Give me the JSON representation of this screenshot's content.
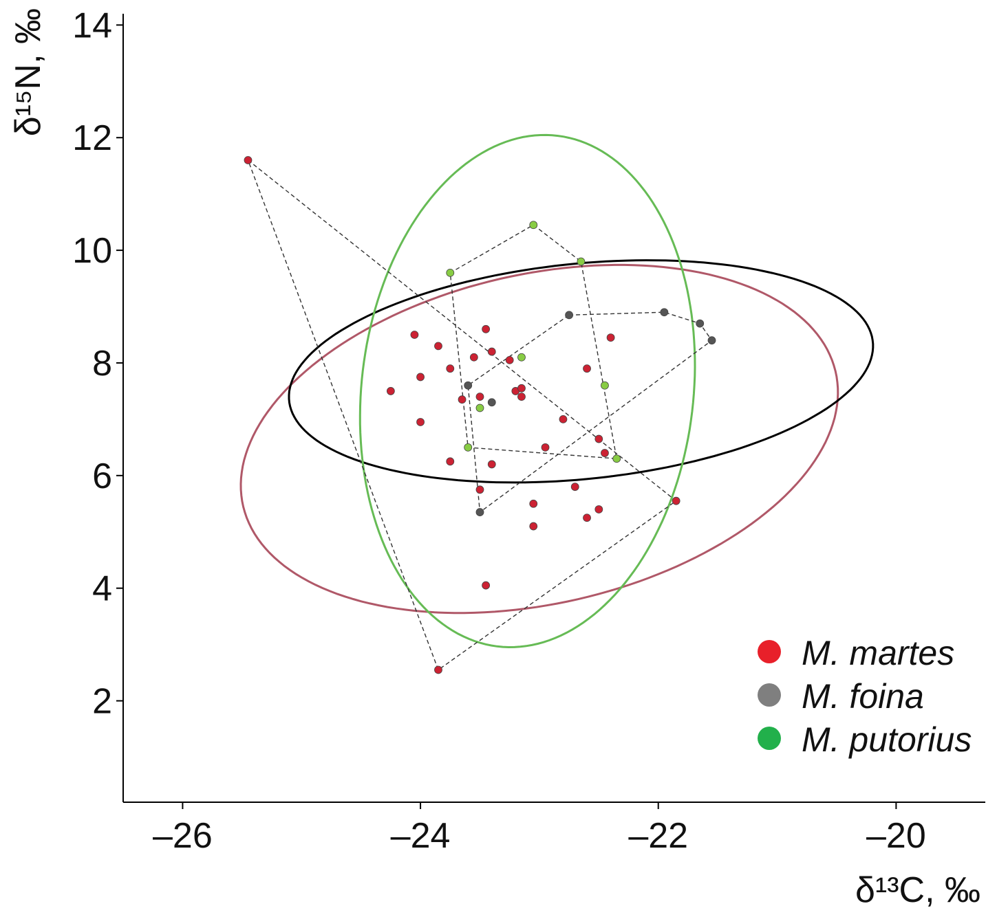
{
  "chart_data": {
    "type": "scatter",
    "title": "",
    "xlabel": "δ¹³C, ‰",
    "ylabel": "δ¹⁵N, ‰",
    "xlim": [
      -26.5,
      -19.25
    ],
    "ylim": [
      0.2,
      14.2
    ],
    "xticks": [
      -26,
      -24,
      -22,
      -20
    ],
    "xtick_labels": [
      "–26",
      "–24",
      "–22",
      "–20"
    ],
    "yticks": [
      2,
      4,
      6,
      8,
      10,
      12,
      14
    ],
    "ytick_labels": [
      "2",
      "4",
      "6",
      "8",
      "10",
      "12",
      "14"
    ],
    "grid": false,
    "legend_position": "bottom-right",
    "series": [
      {
        "name": "M. martes",
        "color": "#cc2233",
        "legend_color": "#e8202a",
        "ellipse_color": "#b05868",
        "points": [
          [
            -25.45,
            11.6
          ],
          [
            -24.05,
            8.5
          ],
          [
            -23.85,
            8.3
          ],
          [
            -24.0,
            7.75
          ],
          [
            -24.25,
            7.5
          ],
          [
            -24.0,
            6.95
          ],
          [
            -23.75,
            7.9
          ],
          [
            -23.65,
            7.35
          ],
          [
            -23.55,
            8.1
          ],
          [
            -23.45,
            8.6
          ],
          [
            -23.4,
            8.2
          ],
          [
            -23.5,
            7.4
          ],
          [
            -23.25,
            8.05
          ],
          [
            -23.2,
            7.5
          ],
          [
            -23.15,
            7.55
          ],
          [
            -23.15,
            7.4
          ],
          [
            -22.8,
            7.0
          ],
          [
            -22.6,
            7.9
          ],
          [
            -22.4,
            8.45
          ],
          [
            -22.95,
            6.5
          ],
          [
            -22.5,
            6.65
          ],
          [
            -22.45,
            6.4
          ],
          [
            -23.75,
            6.25
          ],
          [
            -23.4,
            6.2
          ],
          [
            -23.5,
            5.75
          ],
          [
            -22.7,
            5.8
          ],
          [
            -23.05,
            5.5
          ],
          [
            -22.5,
            5.4
          ],
          [
            -22.6,
            5.25
          ],
          [
            -23.05,
            5.1
          ],
          [
            -21.85,
            5.55
          ],
          [
            -23.45,
            4.05
          ],
          [
            -23.85,
            2.55
          ]
        ],
        "hull": [
          [
            -25.45,
            11.6
          ],
          [
            -21.85,
            5.55
          ],
          [
            -23.85,
            2.55
          ]
        ],
        "ellipse": {
          "center": [
            -23.0,
            6.65
          ],
          "semi_axes": [
            2.3,
            3.25
          ],
          "angle_deg": -26
        }
      },
      {
        "name": "M. foina",
        "color": "#555555",
        "legend_color": "#7f7f7f",
        "ellipse_color": "#000000",
        "points": [
          [
            -22.75,
            8.85
          ],
          [
            -21.95,
            8.9
          ],
          [
            -21.65,
            8.7
          ],
          [
            -21.55,
            8.4
          ],
          [
            -23.6,
            7.6
          ],
          [
            -23.4,
            7.3
          ],
          [
            -23.5,
            5.35
          ]
        ],
        "hull": [
          [
            -22.75,
            8.85
          ],
          [
            -21.95,
            8.9
          ],
          [
            -21.65,
            8.7
          ],
          [
            -21.55,
            8.4
          ],
          [
            -23.5,
            5.35
          ],
          [
            -23.6,
            7.6
          ]
        ],
        "ellipse": {
          "center": [
            -22.65,
            7.85
          ],
          "semi_axes": [
            2.55,
            1.85
          ],
          "angle_deg": 23
        }
      },
      {
        "name": "M. putorius",
        "color": "#88cc44",
        "legend_color": "#22b04b",
        "ellipse_color": "#66bb55",
        "points": [
          [
            -23.05,
            10.45
          ],
          [
            -22.65,
            9.8
          ],
          [
            -23.75,
            9.6
          ],
          [
            -23.15,
            8.1
          ],
          [
            -22.45,
            7.6
          ],
          [
            -23.5,
            7.2
          ],
          [
            -23.6,
            6.5
          ],
          [
            -22.35,
            6.3
          ]
        ],
        "hull": [
          [
            -23.05,
            10.45
          ],
          [
            -22.65,
            9.8
          ],
          [
            -22.35,
            6.3
          ],
          [
            -23.6,
            6.5
          ],
          [
            -23.75,
            9.6
          ]
        ],
        "ellipse": {
          "center": [
            -23.1,
            7.5
          ],
          "semi_axes": [
            1.4,
            4.55
          ],
          "angle_deg": -2
        }
      }
    ]
  }
}
